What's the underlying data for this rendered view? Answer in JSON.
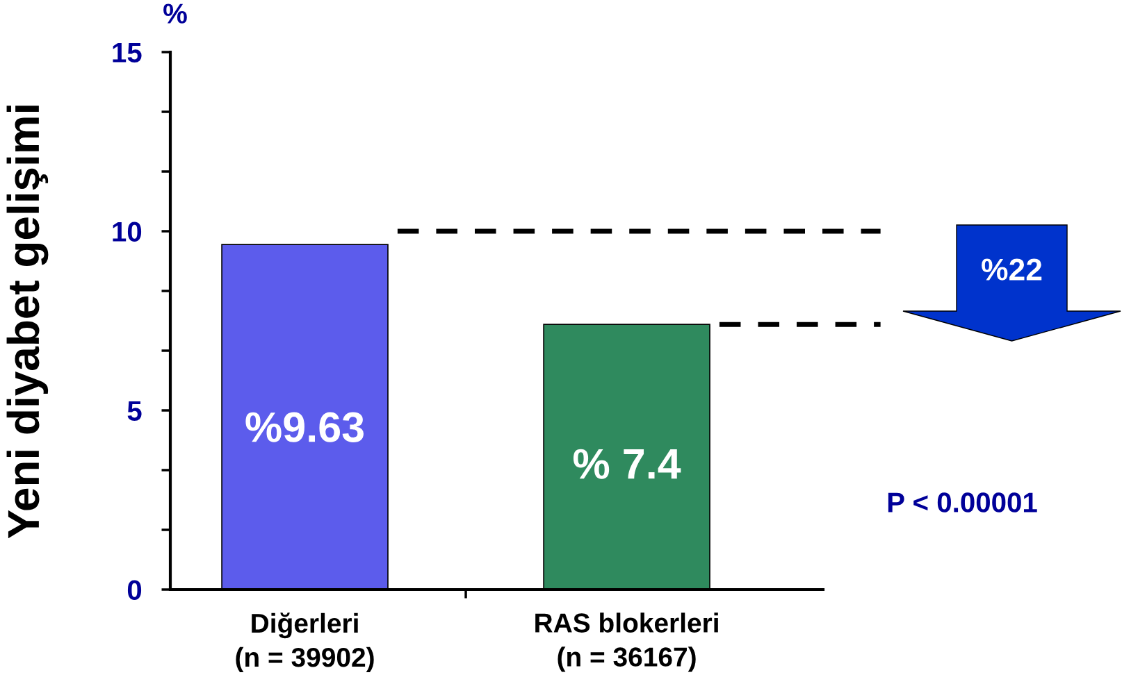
{
  "chart_data": {
    "type": "bar",
    "ylabel": "Yeni diyabet gelişimi",
    "categories": [
      "Diğerleri\n(n = 39902)",
      "RAS blokerleri\n(n = 36167)"
    ],
    "values": [
      9.63,
      7.4
    ],
    "colors": [
      "#5c5cec",
      "#2f8a5e"
    ],
    "value_labels": [
      "%9.63",
      "% 7.4"
    ],
    "ylim": [
      0,
      15
    ],
    "yticks": [
      0,
      5,
      10,
      15
    ],
    "ref_lines": [
      {
        "axis": "y",
        "value": 10,
        "color": "#000000",
        "line_style": "dashed"
      },
      {
        "axis": "y",
        "value": 7.4,
        "color": "#000000",
        "line_style": "dashed"
      }
    ],
    "annotations": [
      "%",
      "%22",
      "P < 0.00001"
    ]
  }
}
